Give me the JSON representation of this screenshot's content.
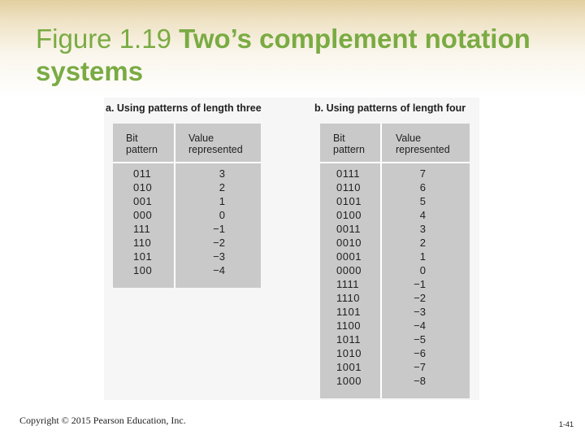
{
  "slide": {
    "title_part1": "Figure 1.19  ",
    "title_part2": "Two’s complement notation systems",
    "footer_copyright": "Copyright © 2015 Pearson Education, Inc.",
    "slide_number": "1-41",
    "title_color": "#7aab43",
    "table_fill_color": "#c9c9c9"
  },
  "figure": {
    "panel_a": {
      "caption": "a. Using patterns of length three",
      "header_pattern_1": "Bit",
      "header_pattern_2": "pattern",
      "header_value_1": "Value",
      "header_value_2": "represented",
      "rows": [
        {
          "pattern": "011",
          "value": "3"
        },
        {
          "pattern": "010",
          "value": "2"
        },
        {
          "pattern": "001",
          "value": "1"
        },
        {
          "pattern": "000",
          "value": "0"
        },
        {
          "pattern": "111",
          "value": "−1"
        },
        {
          "pattern": "110",
          "value": "−2"
        },
        {
          "pattern": "101",
          "value": "−3"
        },
        {
          "pattern": "100",
          "value": "−4"
        }
      ]
    },
    "panel_b": {
      "caption": "b. Using patterns of length four",
      "header_pattern_1": "Bit",
      "header_pattern_2": "pattern",
      "header_value_1": "Value",
      "header_value_2": "represented",
      "rows": [
        {
          "pattern": "0111",
          "value": "7"
        },
        {
          "pattern": "0110",
          "value": "6"
        },
        {
          "pattern": "0101",
          "value": "5"
        },
        {
          "pattern": "0100",
          "value": "4"
        },
        {
          "pattern": "0011",
          "value": "3"
        },
        {
          "pattern": "0010",
          "value": "2"
        },
        {
          "pattern": "0001",
          "value": "1"
        },
        {
          "pattern": "0000",
          "value": "0"
        },
        {
          "pattern": "1111",
          "value": "−1"
        },
        {
          "pattern": "1110",
          "value": "−2"
        },
        {
          "pattern": "1101",
          "value": "−3"
        },
        {
          "pattern": "1100",
          "value": "−4"
        },
        {
          "pattern": "1011",
          "value": "−5"
        },
        {
          "pattern": "1010",
          "value": "−6"
        },
        {
          "pattern": "1001",
          "value": "−7"
        },
        {
          "pattern": "1000",
          "value": "−8"
        }
      ]
    }
  }
}
